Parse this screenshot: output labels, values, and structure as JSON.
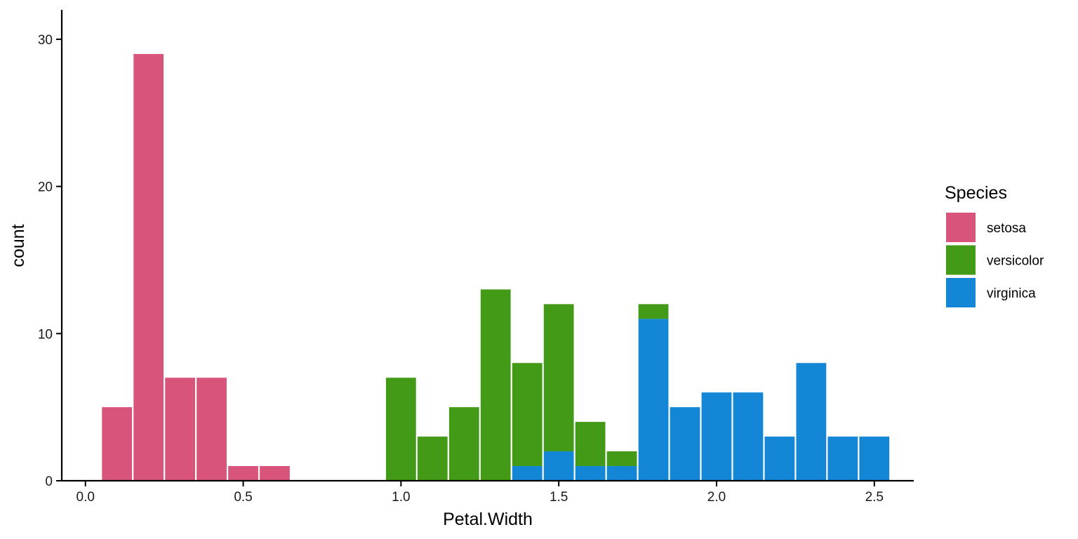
{
  "chart_data": {
    "type": "bar",
    "stacked": true,
    "xlabel": "Petal.Width",
    "ylabel": "count",
    "xlim": [
      -0.075,
      2.625
    ],
    "ylim": [
      0,
      32
    ],
    "x_ticks": [
      0.0,
      0.5,
      1.0,
      1.5,
      2.0,
      2.5
    ],
    "x_tick_labels": [
      "0.0",
      "0.5",
      "1.0",
      "1.5",
      "2.0",
      "2.5"
    ],
    "y_ticks": [
      0,
      10,
      20,
      30
    ],
    "y_tick_labels": [
      "0",
      "10",
      "20",
      "30"
    ],
    "bin_width": 0.1,
    "x": [
      0.1,
      0.2,
      0.3,
      0.4,
      0.5,
      0.6,
      1.0,
      1.1,
      1.2,
      1.3,
      1.4,
      1.5,
      1.6,
      1.7,
      1.8,
      1.9,
      2.0,
      2.1,
      2.2,
      2.3,
      2.4,
      2.5
    ],
    "series": [
      {
        "name": "setosa",
        "color": "#D9547A",
        "values": [
          5,
          29,
          7,
          7,
          1,
          1,
          0,
          0,
          0,
          0,
          0,
          0,
          0,
          0,
          0,
          0,
          0,
          0,
          0,
          0,
          0,
          0
        ]
      },
      {
        "name": "versicolor",
        "color": "#439A16",
        "values": [
          0,
          0,
          0,
          0,
          0,
          0,
          7,
          3,
          5,
          13,
          7,
          10,
          3,
          1,
          1,
          0,
          0,
          0,
          0,
          0,
          0,
          0
        ]
      },
      {
        "name": "virginica",
        "color": "#1387D6",
        "values": [
          0,
          0,
          0,
          0,
          0,
          0,
          0,
          0,
          0,
          0,
          1,
          2,
          1,
          1,
          11,
          5,
          6,
          6,
          3,
          8,
          3,
          3
        ]
      }
    ],
    "legend": {
      "title": "Species",
      "position": "right"
    },
    "grid": false
  }
}
